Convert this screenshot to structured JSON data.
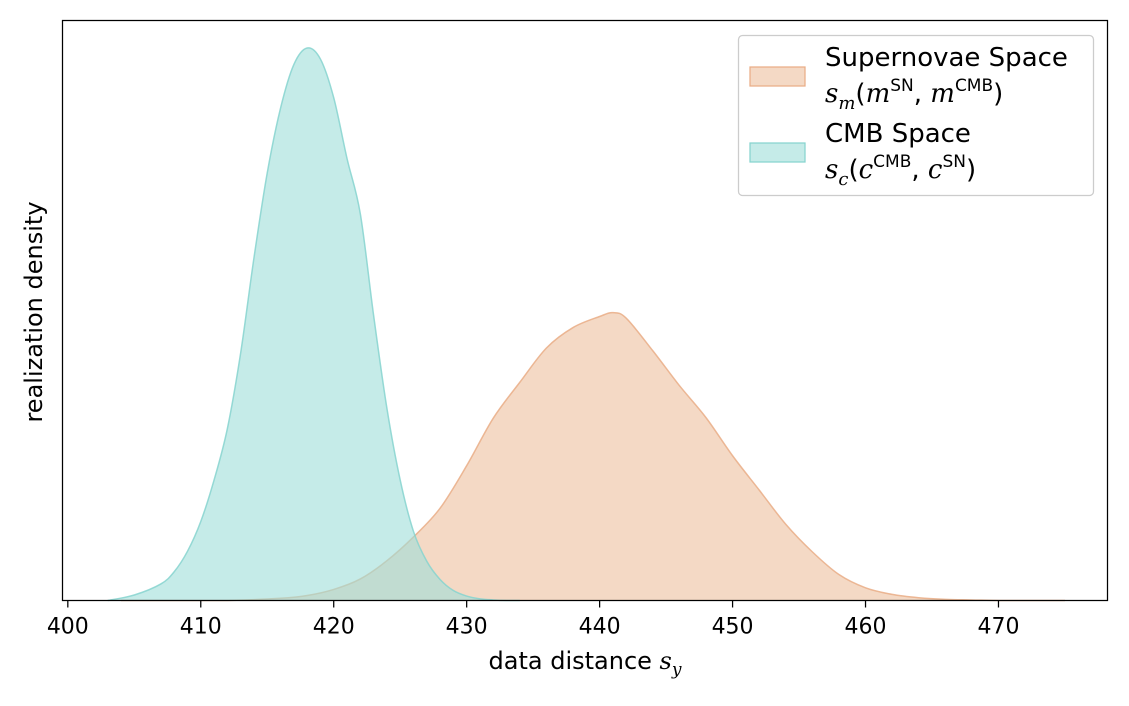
{
  "chart_data": {
    "type": "area",
    "xlabel": "data distance",
    "xlabel_math": {
      "base": "s",
      "sub": "y"
    },
    "ylabel": "realization density",
    "xlim": [
      399.6,
      478.2
    ],
    "ylim": [
      0,
      1.0
    ],
    "x_ticks": [
      400,
      410,
      420,
      430,
      440,
      450,
      460,
      470
    ],
    "grid": false,
    "legend_placement": "top-right",
    "series": [
      {
        "name": "Supernovae Space",
        "legend_math": {
          "base": "s",
          "sub": "m",
          "args": [
            {
              "base": "m",
              "sup": "SN"
            },
            {
              "base": "m",
              "sup": "CMB"
            }
          ]
        },
        "fill_color": "#edbf9f",
        "line_color": "#e9ad86",
        "opacity": 0.6,
        "x": [
          404,
          408,
          412,
          416,
          418,
          420,
          422,
          424,
          426,
          428,
          430,
          432,
          434,
          436,
          438,
          440,
          441,
          442,
          444,
          446,
          448,
          450,
          452,
          454,
          456,
          458,
          460,
          462,
          464,
          466,
          468,
          470,
          472,
          475
        ],
        "y": [
          0.0,
          0.0,
          0.0,
          0.004,
          0.009,
          0.02,
          0.039,
          0.072,
          0.115,
          0.167,
          0.244,
          0.33,
          0.395,
          0.457,
          0.494,
          0.514,
          0.521,
          0.511,
          0.452,
          0.389,
          0.331,
          0.262,
          0.2,
          0.138,
          0.088,
          0.047,
          0.023,
          0.011,
          0.005,
          0.002,
          0.001,
          0.0,
          0.0,
          0.0
        ]
      },
      {
        "name": "CMB Space",
        "legend_math": {
          "base": "s",
          "sub": "c",
          "args": [
            {
              "base": "c",
              "sup": "CMB"
            },
            {
              "base": "c",
              "sup": "SN"
            }
          ]
        },
        "fill_color": "#9fddd9",
        "line_color": "#86d4cf",
        "opacity": 0.6,
        "x": [
          403,
          405,
          407,
          408,
          409,
          410,
          411,
          412,
          413,
          414,
          415,
          416,
          417,
          418,
          419,
          420,
          421,
          422,
          423,
          424,
          425,
          426,
          427,
          428,
          429,
          430,
          431,
          432,
          433,
          434
        ],
        "y": [
          0.0,
          0.01,
          0.03,
          0.052,
          0.089,
          0.143,
          0.218,
          0.311,
          0.448,
          0.62,
          0.774,
          0.891,
          0.97,
          1.0,
          0.98,
          0.91,
          0.8,
          0.7,
          0.516,
          0.348,
          0.218,
          0.125,
          0.071,
          0.038,
          0.018,
          0.008,
          0.003,
          0.001,
          0.0,
          0.0
        ]
      }
    ]
  }
}
